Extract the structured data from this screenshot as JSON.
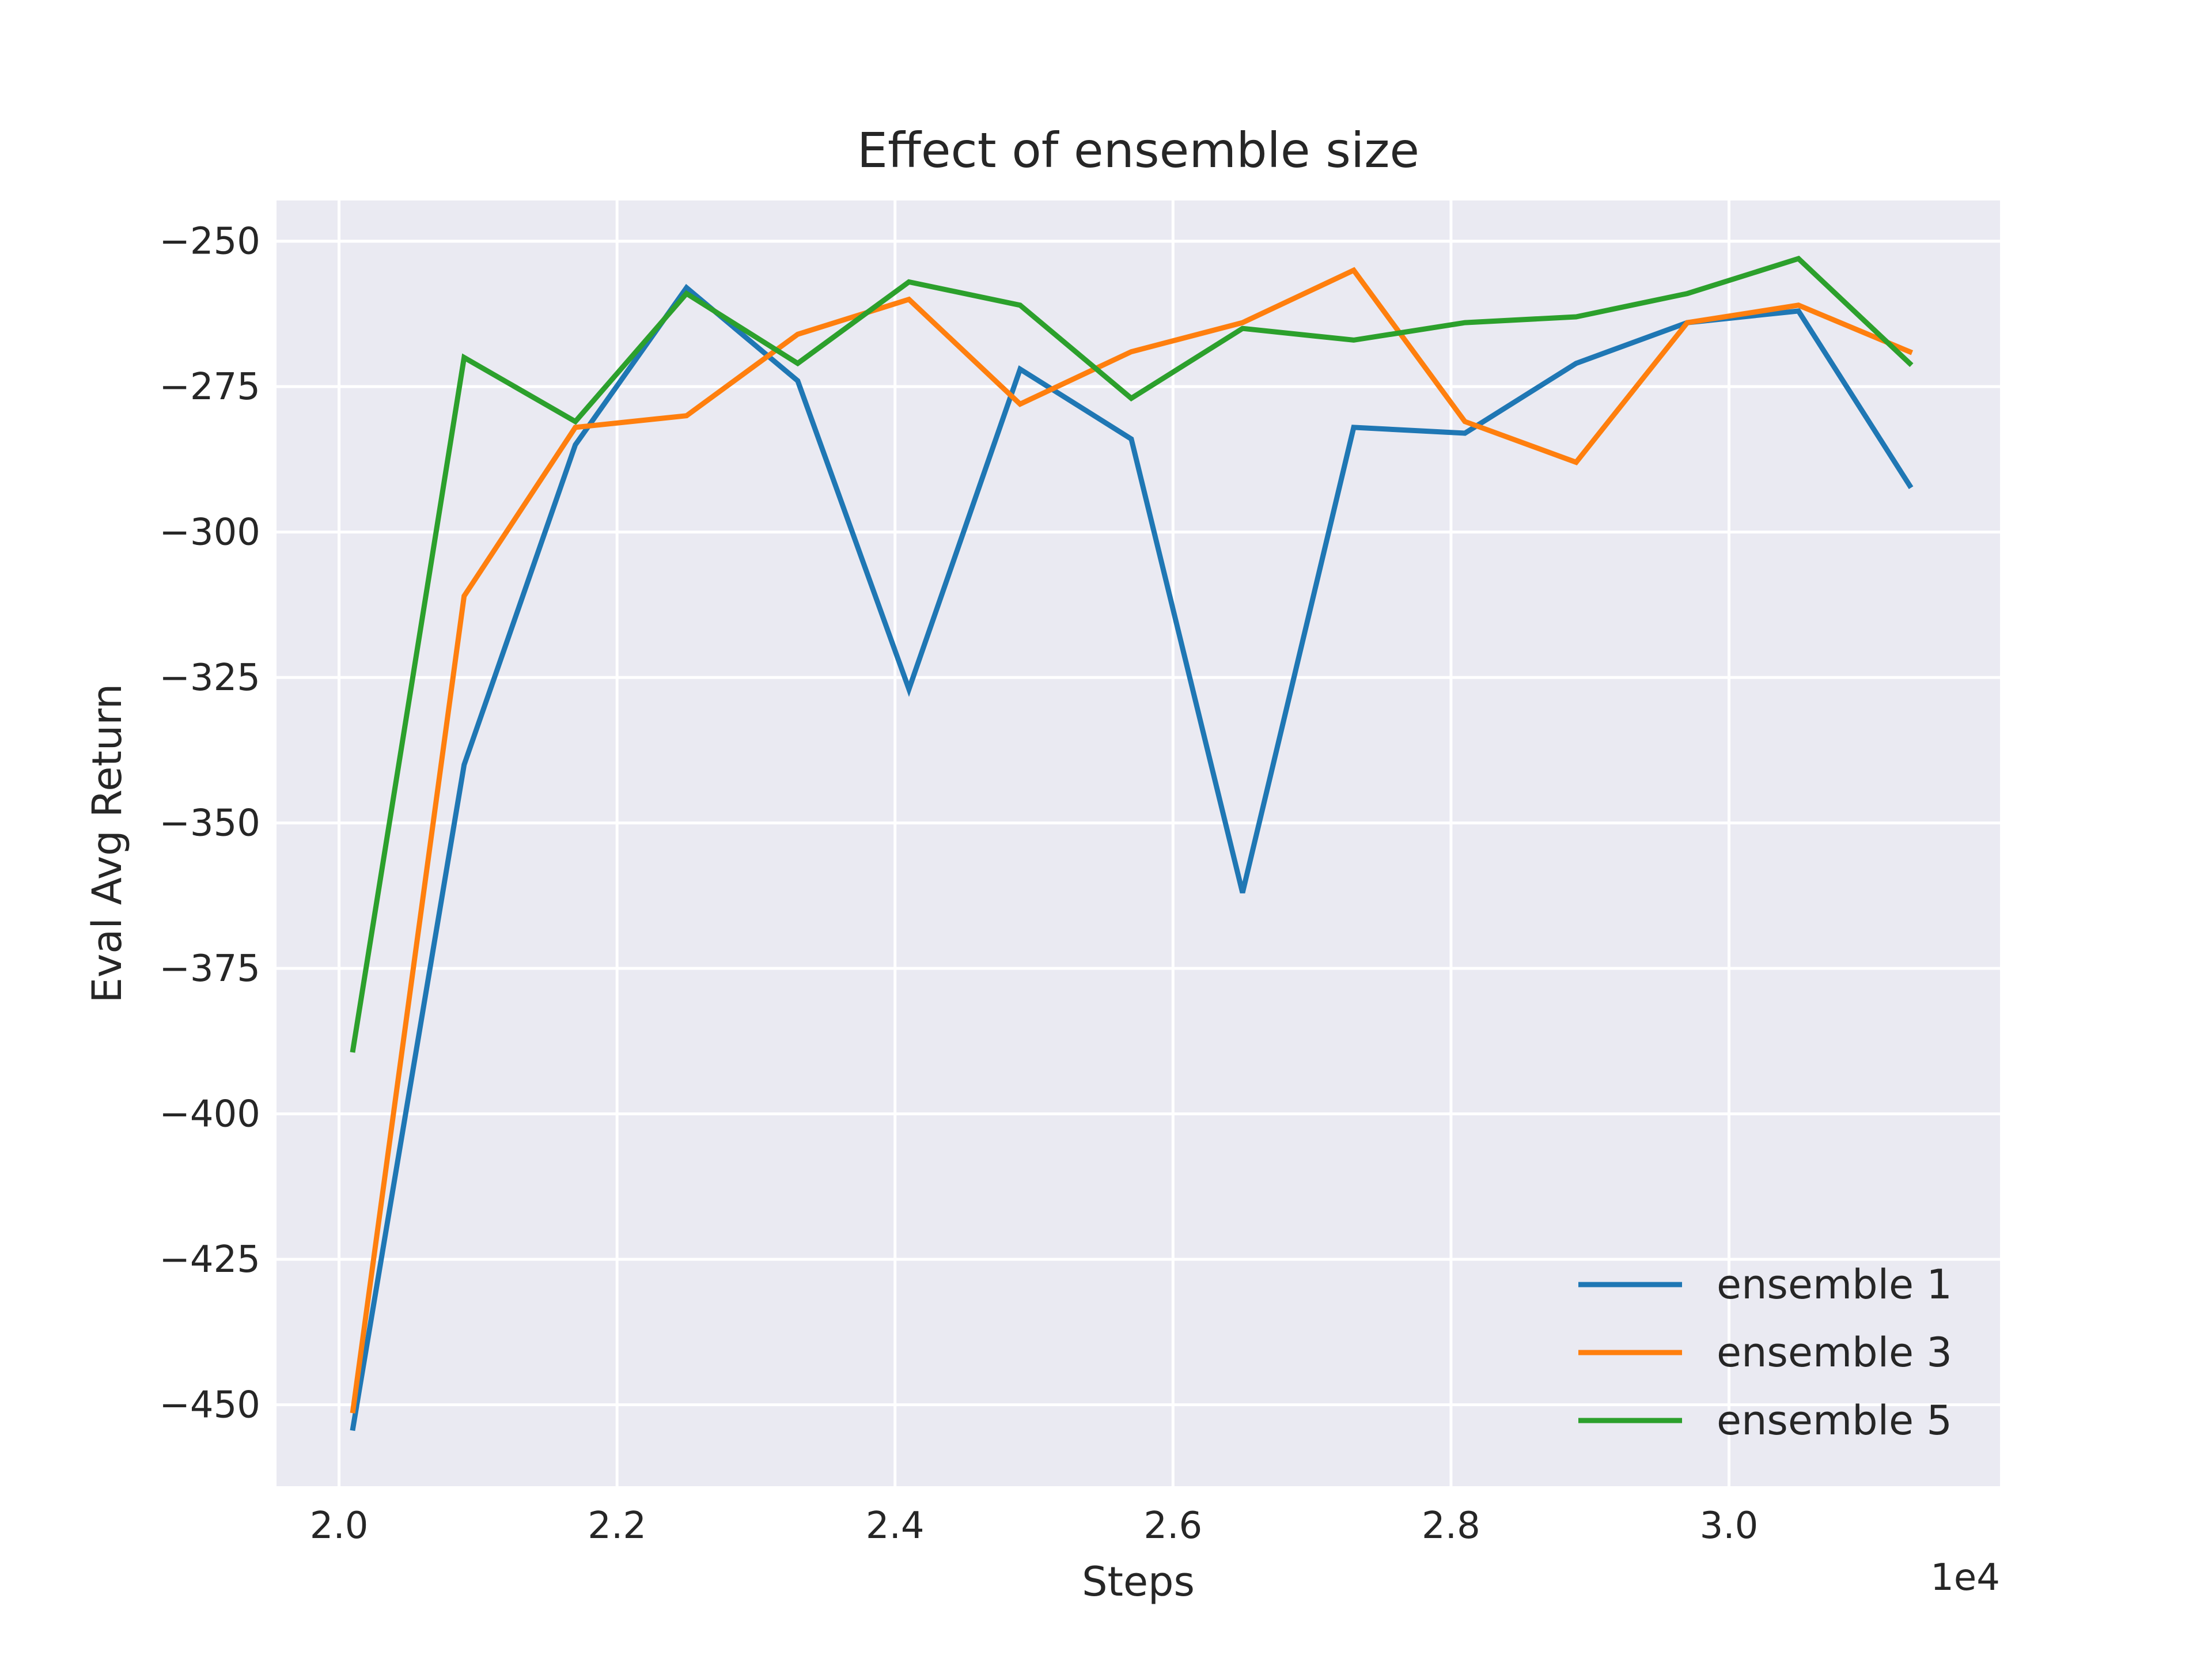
{
  "chart_data": {
    "type": "line",
    "title": "Effect of ensemble size",
    "xlabel": "Steps",
    "ylabel": "Eval Avg Return",
    "x_offset_label": "1e4",
    "x": [
      2.01,
      2.09,
      2.17,
      2.25,
      2.33,
      2.41,
      2.49,
      2.57,
      2.65,
      2.73,
      2.81,
      2.89,
      2.97,
      3.05,
      3.13
    ],
    "series": [
      {
        "name": "ensemble 1",
        "color": "#1f77b4",
        "values": [
          -454,
          -340,
          -285,
          -258,
          -274,
          -327,
          -272,
          -284,
          -362,
          -282,
          -283,
          -271,
          -264,
          -262,
          -292
        ]
      },
      {
        "name": "ensemble 3",
        "color": "#ff7f0e",
        "values": [
          -451,
          -311,
          -282,
          -280,
          -266,
          -260,
          -278,
          -269,
          -264,
          -255,
          -281,
          -288,
          -264,
          -261,
          -269
        ]
      },
      {
        "name": "ensemble 5",
        "color": "#2ca02c",
        "values": [
          -389,
          -270,
          -281,
          -259,
          -271,
          -257,
          -261,
          -277,
          -265,
          -267,
          -264,
          -263,
          -259,
          -253,
          -271
        ]
      }
    ],
    "xlim": [
      1.955,
      3.195
    ],
    "ylim": [
      -464,
      -243
    ],
    "xticks": [
      2.0,
      2.2,
      2.4,
      2.6,
      2.8,
      3.0
    ],
    "xtick_labels": [
      "2.0",
      "2.2",
      "2.4",
      "2.6",
      "2.8",
      "3.0"
    ],
    "yticks": [
      -250,
      -275,
      -300,
      -325,
      -350,
      -375,
      -400,
      -425,
      -450
    ],
    "ytick_labels": [
      "−250",
      "−275",
      "−300",
      "−325",
      "−350",
      "−375",
      "−400",
      "−425",
      "−450"
    ],
    "grid": true,
    "legend_position": "lower-right",
    "colors": {
      "plot_background": "#eaeaf2",
      "grid": "#ffffff",
      "text": "#262626"
    }
  }
}
